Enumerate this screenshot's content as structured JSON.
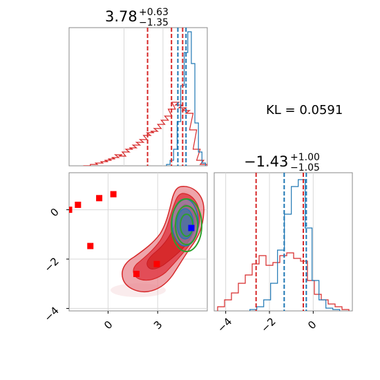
{
  "chart_data": [
    {
      "type": "histogram",
      "panel": "top-left",
      "title": {
        "main": "3.78",
        "sup": "+0.63",
        "sub": "−1.35"
      },
      "xlim": [
        -2,
        5.8
      ],
      "grid": true,
      "series": [
        {
          "name": "",
          "color": "#d62728",
          "x": [
            -1.0,
            -0.6,
            -0.3,
            0.0,
            0.2,
            0.4,
            0.6,
            0.8,
            1.0,
            1.2,
            1.4,
            1.6,
            1.8,
            2.0,
            2.2,
            2.4,
            2.6,
            2.8,
            3.0,
            3.2,
            3.4,
            3.6,
            3.8,
            4.0,
            4.2,
            4.4,
            4.6,
            4.8,
            5.0,
            5.2,
            5.4,
            5.6
          ],
          "y": [
            0.0,
            0.01,
            0.02,
            0.03,
            0.04,
            0.05,
            0.06,
            0.08,
            0.07,
            0.1,
            0.12,
            0.13,
            0.15,
            0.17,
            0.19,
            0.22,
            0.24,
            0.25,
            0.27,
            0.3,
            0.33,
            0.36,
            0.41,
            0.46,
            0.44,
            0.42,
            0.4,
            0.38,
            0.26,
            0.12,
            0.04,
            0.01
          ]
        },
        {
          "name": "",
          "color": "#1f77b4",
          "x": [
            3.6,
            3.8,
            4.0,
            4.2,
            4.4,
            4.6,
            4.8,
            5.0,
            5.2,
            5.4,
            5.6
          ],
          "y": [
            0.01,
            0.04,
            0.12,
            0.32,
            0.58,
            0.82,
            0.97,
            0.74,
            0.31,
            0.1,
            0.02
          ]
        }
      ],
      "vlines": [
        {
          "x": 2.43,
          "color": "#d62728"
        },
        {
          "x": 3.78,
          "color": "#d62728"
        },
        {
          "x": 4.41,
          "color": "#d62728"
        },
        {
          "x": 4.14,
          "color": "#1f77b4"
        },
        {
          "x": 4.6,
          "color": "#1f77b4"
        }
      ]
    },
    {
      "type": "scatter-contour",
      "panel": "bottom-left",
      "xlim": [
        -2,
        5.8
      ],
      "ylim": [
        -4.1,
        1.5
      ],
      "grid": true,
      "xticks": [
        "0",
        "3"
      ],
      "yticks": [
        "−4",
        "−2",
        "0"
      ],
      "points": [
        {
          "x": -2.0,
          "y": 0.0,
          "color": "#ff0000"
        },
        {
          "x": -1.5,
          "y": 0.2,
          "color": "#ff0000"
        },
        {
          "x": -0.8,
          "y": -1.47,
          "color": "#ff0000"
        },
        {
          "x": -0.3,
          "y": 0.47,
          "color": "#ff0000"
        },
        {
          "x": 0.5,
          "y": 0.63,
          "color": "#ff0000"
        },
        {
          "x": 1.8,
          "y": -2.6,
          "color": "#ff0000"
        },
        {
          "x": 2.95,
          "y": -2.2,
          "color": "#ff0000"
        },
        {
          "x": 4.9,
          "y": -0.74,
          "color": "#0000ff"
        }
      ]
    },
    {
      "type": "histogram",
      "panel": "bottom-right",
      "title": {
        "main": "−1.43",
        "sup": "+1.00",
        "sub": "−1.05"
      },
      "xlim": [
        -4.3,
        1.7
      ],
      "xticks": [
        "−4",
        "−2",
        "0"
      ],
      "grid": true,
      "series": [
        {
          "name": "",
          "color": "#d62728",
          "x": [
            -4.0,
            -3.7,
            -3.4,
            -3.1,
            -2.8,
            -2.5,
            -2.2,
            -1.9,
            -1.6,
            -1.3,
            -1.0,
            -0.7,
            -0.4,
            -0.1,
            0.2,
            0.5,
            0.8,
            1.1,
            1.4
          ],
          "y": [
            0.03,
            0.08,
            0.13,
            0.2,
            0.26,
            0.34,
            0.4,
            0.33,
            0.35,
            0.4,
            0.42,
            0.38,
            0.36,
            0.22,
            0.12,
            0.08,
            0.05,
            0.03,
            0.01
          ]
        },
        {
          "name": "",
          "color": "#1f77b4",
          "x": [
            -2.6,
            -2.3,
            -2.0,
            -1.7,
            -1.4,
            -1.1,
            -0.8,
            -0.5,
            -0.2,
            0.1,
            0.4,
            0.7,
            1.0
          ],
          "y": [
            0.01,
            0.03,
            0.08,
            0.2,
            0.44,
            0.7,
            0.9,
            0.95,
            0.6,
            0.22,
            0.08,
            0.02,
            0.01
          ]
        }
      ],
      "vlines": [
        {
          "x": -2.48,
          "color": "#d62728"
        },
        {
          "x": -0.43,
          "color": "#d62728"
        },
        {
          "x": -1.26,
          "color": "#1f77b4"
        },
        {
          "x": -0.3,
          "color": "#1f77b4"
        }
      ]
    }
  ],
  "annotation": {
    "kl_text": "KL = 0.0591"
  }
}
